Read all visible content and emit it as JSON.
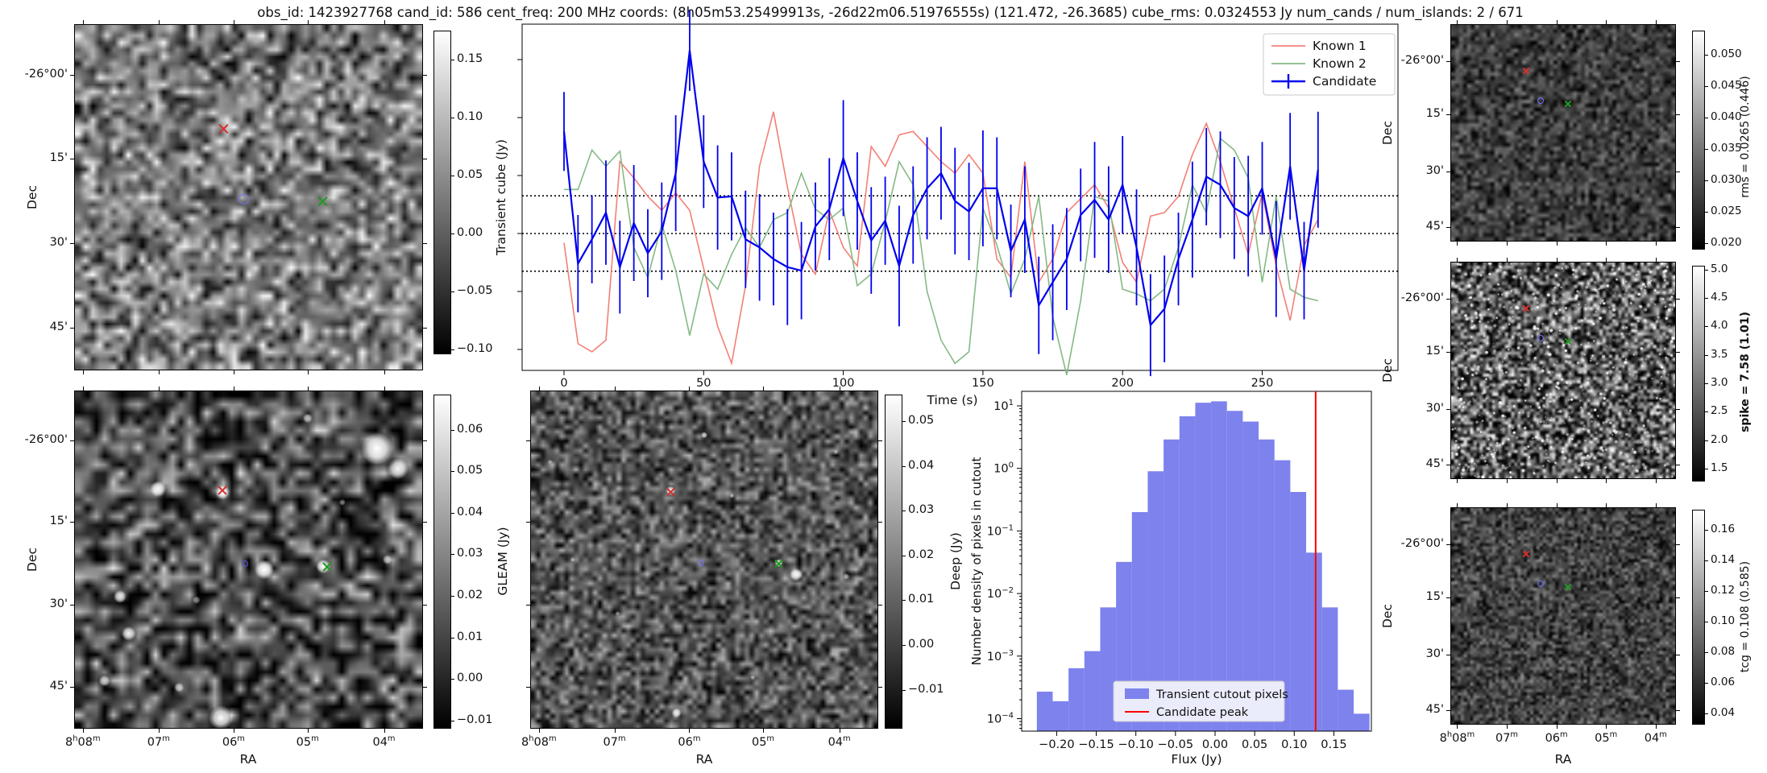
{
  "title": "obs_id: 1423927768 cand_id: 586 cent_freq: 200 MHz coords: (8h05m53.25499913s, -26d22m06.51976555s) (121.472, -26.3685) cube_rms: 0.0324553 Jy num_cands / num_islands: 2 / 671",
  "colors": {
    "known1": "#f28076",
    "known2": "#85b985",
    "candidate": "#0000ee",
    "hist_fill": "#7d82ed",
    "candidate_peak_line": "#ff0000",
    "marker_red": "#d62f2f",
    "marker_green": "#1f9a1f",
    "marker_blue": "#7070ff"
  },
  "panels": {
    "transient_cube": {
      "dec_axis_label": "Dec",
      "dec_tick_labels": [
        "-26°00'",
        "15'",
        "30'",
        "45'"
      ],
      "colorbar_ticks": [
        "0.15",
        "0.10",
        "0.05",
        "0.00",
        "−0.05",
        "−0.10"
      ],
      "markers": [
        {
          "shape": "x",
          "color": "#d62f2f",
          "fx": 0.428,
          "fy": 0.303
        },
        {
          "shape": "circle",
          "color": "#7070ff",
          "fx": 0.487,
          "fy": 0.505
        },
        {
          "shape": "x",
          "color": "#1f9a1f",
          "fx": 0.713,
          "fy": 0.512
        }
      ]
    },
    "gleam": {
      "dec_axis_label": "Dec",
      "dec_tick_labels": [
        "-26°00'",
        "15'",
        "30'",
        "45'"
      ],
      "ra_tick_labels": [
        "8h08m",
        "07m",
        "06m",
        "05m",
        "04m"
      ],
      "ra_axis_label": "RA",
      "colorbar_label": "GLEAM (Jy)",
      "colorbar_ticks": [
        "0.06",
        "0.05",
        "0.04",
        "0.03",
        "0.02",
        "0.01",
        "0.00",
        "−0.01"
      ],
      "markers": [
        {
          "shape": "x",
          "color": "#d62f2f",
          "fx": 0.425,
          "fy": 0.295
        },
        {
          "shape": "circle",
          "color": "#5555dd",
          "fx": 0.49,
          "fy": 0.512
        },
        {
          "shape": "x",
          "color": "#1f9a1f",
          "fx": 0.725,
          "fy": 0.52
        }
      ],
      "sources": [
        [
          0.87,
          0.17,
          20,
          1.0
        ],
        [
          0.93,
          0.23,
          13,
          0.95
        ],
        [
          0.425,
          0.3,
          9,
          1.0
        ],
        [
          0.24,
          0.29,
          10,
          0.95
        ],
        [
          0.545,
          0.53,
          12,
          1.0
        ],
        [
          0.715,
          0.52,
          9,
          1.0
        ],
        [
          0.13,
          0.61,
          8,
          0.85
        ],
        [
          0.155,
          0.72,
          9,
          0.95
        ],
        [
          0.085,
          0.86,
          7,
          0.8
        ],
        [
          0.42,
          0.97,
          15,
          1.0
        ],
        [
          0.3,
          0.88,
          6,
          0.7
        ],
        [
          0.67,
          0.08,
          6,
          0.7
        ],
        [
          0.9,
          0.5,
          6,
          0.7
        ],
        [
          0.35,
          0.62,
          5,
          0.5
        ],
        [
          0.77,
          0.33,
          4,
          0.5
        ]
      ]
    },
    "deep": {
      "ra_tick_labels": [
        "8h08m",
        "07m",
        "06m",
        "05m",
        "04m"
      ],
      "ra_axis_label": "RA",
      "colorbar_label": "Deep (Jy)",
      "colorbar_ticks": [
        "0.05",
        "0.04",
        "0.03",
        "0.02",
        "0.01",
        "0.00",
        "−0.01"
      ],
      "markers": [
        {
          "shape": "x",
          "color": "#d62f2f",
          "fx": 0.403,
          "fy": 0.3
        },
        {
          "shape": "circle",
          "color": "#7070ff",
          "fx": 0.49,
          "fy": 0.51
        },
        {
          "shape": "x",
          "color": "#1f9a1f",
          "fx": 0.715,
          "fy": 0.512
        }
      ],
      "sources": [
        [
          0.403,
          0.295,
          6,
          1.0
        ],
        [
          0.715,
          0.51,
          5,
          1.0
        ],
        [
          0.765,
          0.545,
          8,
          0.95
        ],
        [
          0.5,
          0.13,
          4,
          0.8
        ],
        [
          0.58,
          0.31,
          3,
          0.6
        ],
        [
          0.12,
          0.5,
          3,
          0.55
        ],
        [
          0.42,
          0.955,
          6,
          0.9
        ],
        [
          0.64,
          0.85,
          3,
          0.55
        ],
        [
          0.88,
          0.18,
          3,
          0.5
        ],
        [
          0.91,
          0.55,
          4,
          0.6
        ],
        [
          0.25,
          0.66,
          3,
          0.45
        ],
        [
          0.055,
          0.21,
          3,
          0.5
        ]
      ]
    },
    "rms": {
      "dec_axis_label": "Dec",
      "dec_tick_labels": [
        "-26°00'",
        "15'",
        "30'",
        "45'"
      ],
      "colorbar_label": "rms = 0.0265 (0.446)",
      "colorbar_ticks": [
        "0.050",
        "0.045",
        "0.040",
        "0.035",
        "0.030",
        "0.025",
        "0.020"
      ],
      "markers": [
        {
          "shape": "x",
          "color": "#d62f2f",
          "fx": 0.335,
          "fy": 0.215
        },
        {
          "shape": "circle",
          "color": "#7070ff",
          "fx": 0.4,
          "fy": 0.35
        },
        {
          "shape": "x",
          "color": "#1f9a1f",
          "fx": 0.52,
          "fy": 0.365
        }
      ]
    },
    "spike": {
      "dec_axis_label": "Dec",
      "dec_tick_labels": [
        "-26°00'",
        "15'",
        "30'",
        "45'"
      ],
      "colorbar_label": "spike = 7.58 (1.01)",
      "colorbar_ticks": [
        "5.0",
        "4.5",
        "4.0",
        "3.5",
        "3.0",
        "2.5",
        "2.0",
        "1.5"
      ],
      "markers": [
        {
          "shape": "x",
          "color": "#d62f2f",
          "fx": 0.335,
          "fy": 0.215
        },
        {
          "shape": "circle",
          "color": "#7070ff",
          "fx": 0.4,
          "fy": 0.35
        },
        {
          "shape": "x",
          "color": "#1f9a1f",
          "fx": 0.52,
          "fy": 0.365
        }
      ]
    },
    "tcg": {
      "dec_axis_label": "Dec",
      "dec_tick_labels": [
        "-26°00'",
        "15'",
        "30'",
        "45'"
      ],
      "ra_tick_labels": [
        "8h08m",
        "07m",
        "06m",
        "05m",
        "04m"
      ],
      "ra_axis_label": "RA",
      "colorbar_label": "tcg = 0.108 (0.585)",
      "colorbar_ticks": [
        "0.16",
        "0.14",
        "0.12",
        "0.10",
        "0.08",
        "0.06",
        "0.04"
      ],
      "markers": [
        {
          "shape": "x",
          "color": "#d62f2f",
          "fx": 0.335,
          "fy": 0.215
        },
        {
          "shape": "circle",
          "color": "#7070ff",
          "fx": 0.4,
          "fy": 0.35
        },
        {
          "shape": "x",
          "color": "#1f9a1f",
          "fx": 0.52,
          "fy": 0.365
        }
      ]
    }
  },
  "chart_data": [
    {
      "type": "line",
      "title": "",
      "xlabel": "Time (s)",
      "ylabel": "Transient cube (Jy)",
      "xlim": [
        -15,
        297
      ],
      "ylim": [
        -0.118,
        0.18
      ],
      "x_ticks": [
        0,
        50,
        100,
        150,
        200,
        250
      ],
      "x_tick_labels": [
        "0",
        "50",
        "100",
        "150",
        "200",
        "250"
      ],
      "y_ticks": [
        0.15,
        0.1,
        0.05,
        0.0,
        -0.05,
        -0.1
      ],
      "hlines": {
        "values": [
          0.0325,
          0.0,
          -0.0325
        ],
        "style": "dotted",
        "color": "#000000"
      },
      "legend_position": "upper right",
      "grid": false,
      "x": [
        0,
        5,
        10,
        15,
        20,
        25,
        30,
        35,
        40,
        45,
        50,
        55,
        60,
        65,
        70,
        75,
        80,
        85,
        90,
        95,
        100,
        105,
        110,
        115,
        120,
        125,
        130,
        135,
        140,
        145,
        150,
        155,
        160,
        165,
        170,
        175,
        180,
        185,
        190,
        195,
        200,
        205,
        210,
        215,
        220,
        225,
        230,
        235,
        240,
        245,
        250,
        255,
        260,
        265,
        270
      ],
      "series": [
        {
          "name": "Known 1",
          "color": "#f28076",
          "values": [
            -0.008,
            -0.095,
            -0.102,
            -0.092,
            0.062,
            0.048,
            0.032,
            0.02,
            0.035,
            0.02,
            -0.03,
            -0.08,
            -0.112,
            -0.045,
            0.058,
            0.105,
            0.04,
            -0.018,
            -0.035,
            0.02,
            -0.012,
            -0.028,
            0.075,
            0.058,
            0.085,
            0.088,
            0.075,
            0.062,
            0.052,
            0.068,
            0.052,
            -0.022,
            -0.038,
            0.062,
            -0.042,
            -0.022,
            0.018,
            0.03,
            0.042,
            0.022,
            -0.025,
            -0.042,
            0.015,
            0.018,
            0.032,
            0.068,
            0.095,
            0.062,
            0.022,
            -0.018,
            0.035,
            -0.028,
            -0.075,
            -0.01,
            0.012
          ]
        },
        {
          "name": "Known 2",
          "color": "#85b985",
          "values": [
            0.038,
            0.038,
            0.072,
            0.058,
            0.071,
            -0.012,
            -0.038,
            0.008,
            -0.032,
            -0.088,
            -0.035,
            -0.048,
            -0.018,
            0.005,
            -0.012,
            0.012,
            0.018,
            0.052,
            0.021,
            0.012,
            0.022,
            -0.045,
            -0.035,
            0.01,
            0.062,
            0.042,
            -0.05,
            -0.092,
            -0.112,
            -0.102,
            0.022,
            -0.01,
            -0.052,
            -0.022,
            0.032,
            -0.072,
            -0.122,
            -0.058,
            0.032,
            0.028,
            -0.048,
            -0.052,
            -0.058,
            -0.048,
            -0.012,
            0.042,
            0.018,
            0.082,
            0.072,
            0.048,
            -0.042,
            0.032,
            -0.048,
            -0.055,
            -0.058
          ]
        },
        {
          "name": "Candidate",
          "color": "#0000ee",
          "values": [
            0.088,
            -0.026,
            -0.005,
            0.018,
            -0.029,
            0.009,
            -0.017,
            0.002,
            0.052,
            0.158,
            0.062,
            0.031,
            0.032,
            -0.005,
            -0.012,
            -0.022,
            -0.029,
            -0.032,
            0.006,
            0.021,
            0.065,
            0.028,
            -0.006,
            0.011,
            -0.028,
            0.016,
            0.039,
            0.052,
            0.028,
            0.019,
            0.039,
            0.039,
            -0.015,
            0.012,
            -0.062,
            -0.042,
            -0.022,
            0.016,
            0.029,
            0.012,
            0.042,
            -0.012,
            -0.079,
            -0.065,
            -0.022,
            0.012,
            0.049,
            0.042,
            0.022,
            0.015,
            0.039,
            -0.022,
            0.058,
            -0.032,
            0.055
          ],
          "yerr": [
            0.034,
            0.042,
            0.038,
            0.045,
            0.04,
            0.05,
            0.038,
            0.042,
            0.05,
            0.035,
            0.04,
            0.045,
            0.038,
            0.042,
            0.046,
            0.04,
            0.05,
            0.042,
            0.038,
            0.044,
            0.05,
            0.042,
            0.046,
            0.038,
            0.052,
            0.042,
            0.044,
            0.04,
            0.046,
            0.042,
            0.05,
            0.044,
            0.04,
            0.046,
            0.042,
            0.05,
            0.044,
            0.04,
            0.05,
            0.046,
            0.042,
            0.05,
            0.044,
            0.046,
            0.04,
            0.05,
            0.042,
            0.046,
            0.044,
            0.052,
            0.04,
            0.05,
            0.046,
            0.042,
            0.05
          ]
        }
      ]
    },
    {
      "type": "bar",
      "xlabel": "Flux (Jy)",
      "ylabel": "Number density of pixels in cutout",
      "yscale": "log",
      "xlim": [
        -0.244,
        0.197
      ],
      "ylim": [
        6e-05,
        17
      ],
      "x_ticks": [
        -0.2,
        -0.15,
        -0.1,
        -0.05,
        0.0,
        0.05,
        0.1,
        0.15
      ],
      "x_tick_labels": [
        "−0.20",
        "−0.15",
        "−0.10",
        "−0.05",
        "0.00",
        "0.05",
        "0.10",
        "0.15"
      ],
      "y_tick_exponents": [
        1,
        0,
        -1,
        -2,
        -3,
        -4
      ],
      "bin_start": -0.225,
      "bin_width": 0.02,
      "values": [
        0.00027,
        0.00019,
        0.00064,
        0.0012,
        0.006,
        0.032,
        0.2,
        0.9,
        2.9,
        6.8,
        11.2,
        11.8,
        8.3,
        5.6,
        2.9,
        1.35,
        0.42,
        0.045,
        0.006,
        0.00029,
        0.00012
      ],
      "bar_color": "#7d82ed",
      "vline": {
        "value": 0.127,
        "color": "#ff0000"
      },
      "legend": [
        "Transient cutout pixels",
        "Candidate peak"
      ],
      "legend_position": "lower center"
    }
  ]
}
